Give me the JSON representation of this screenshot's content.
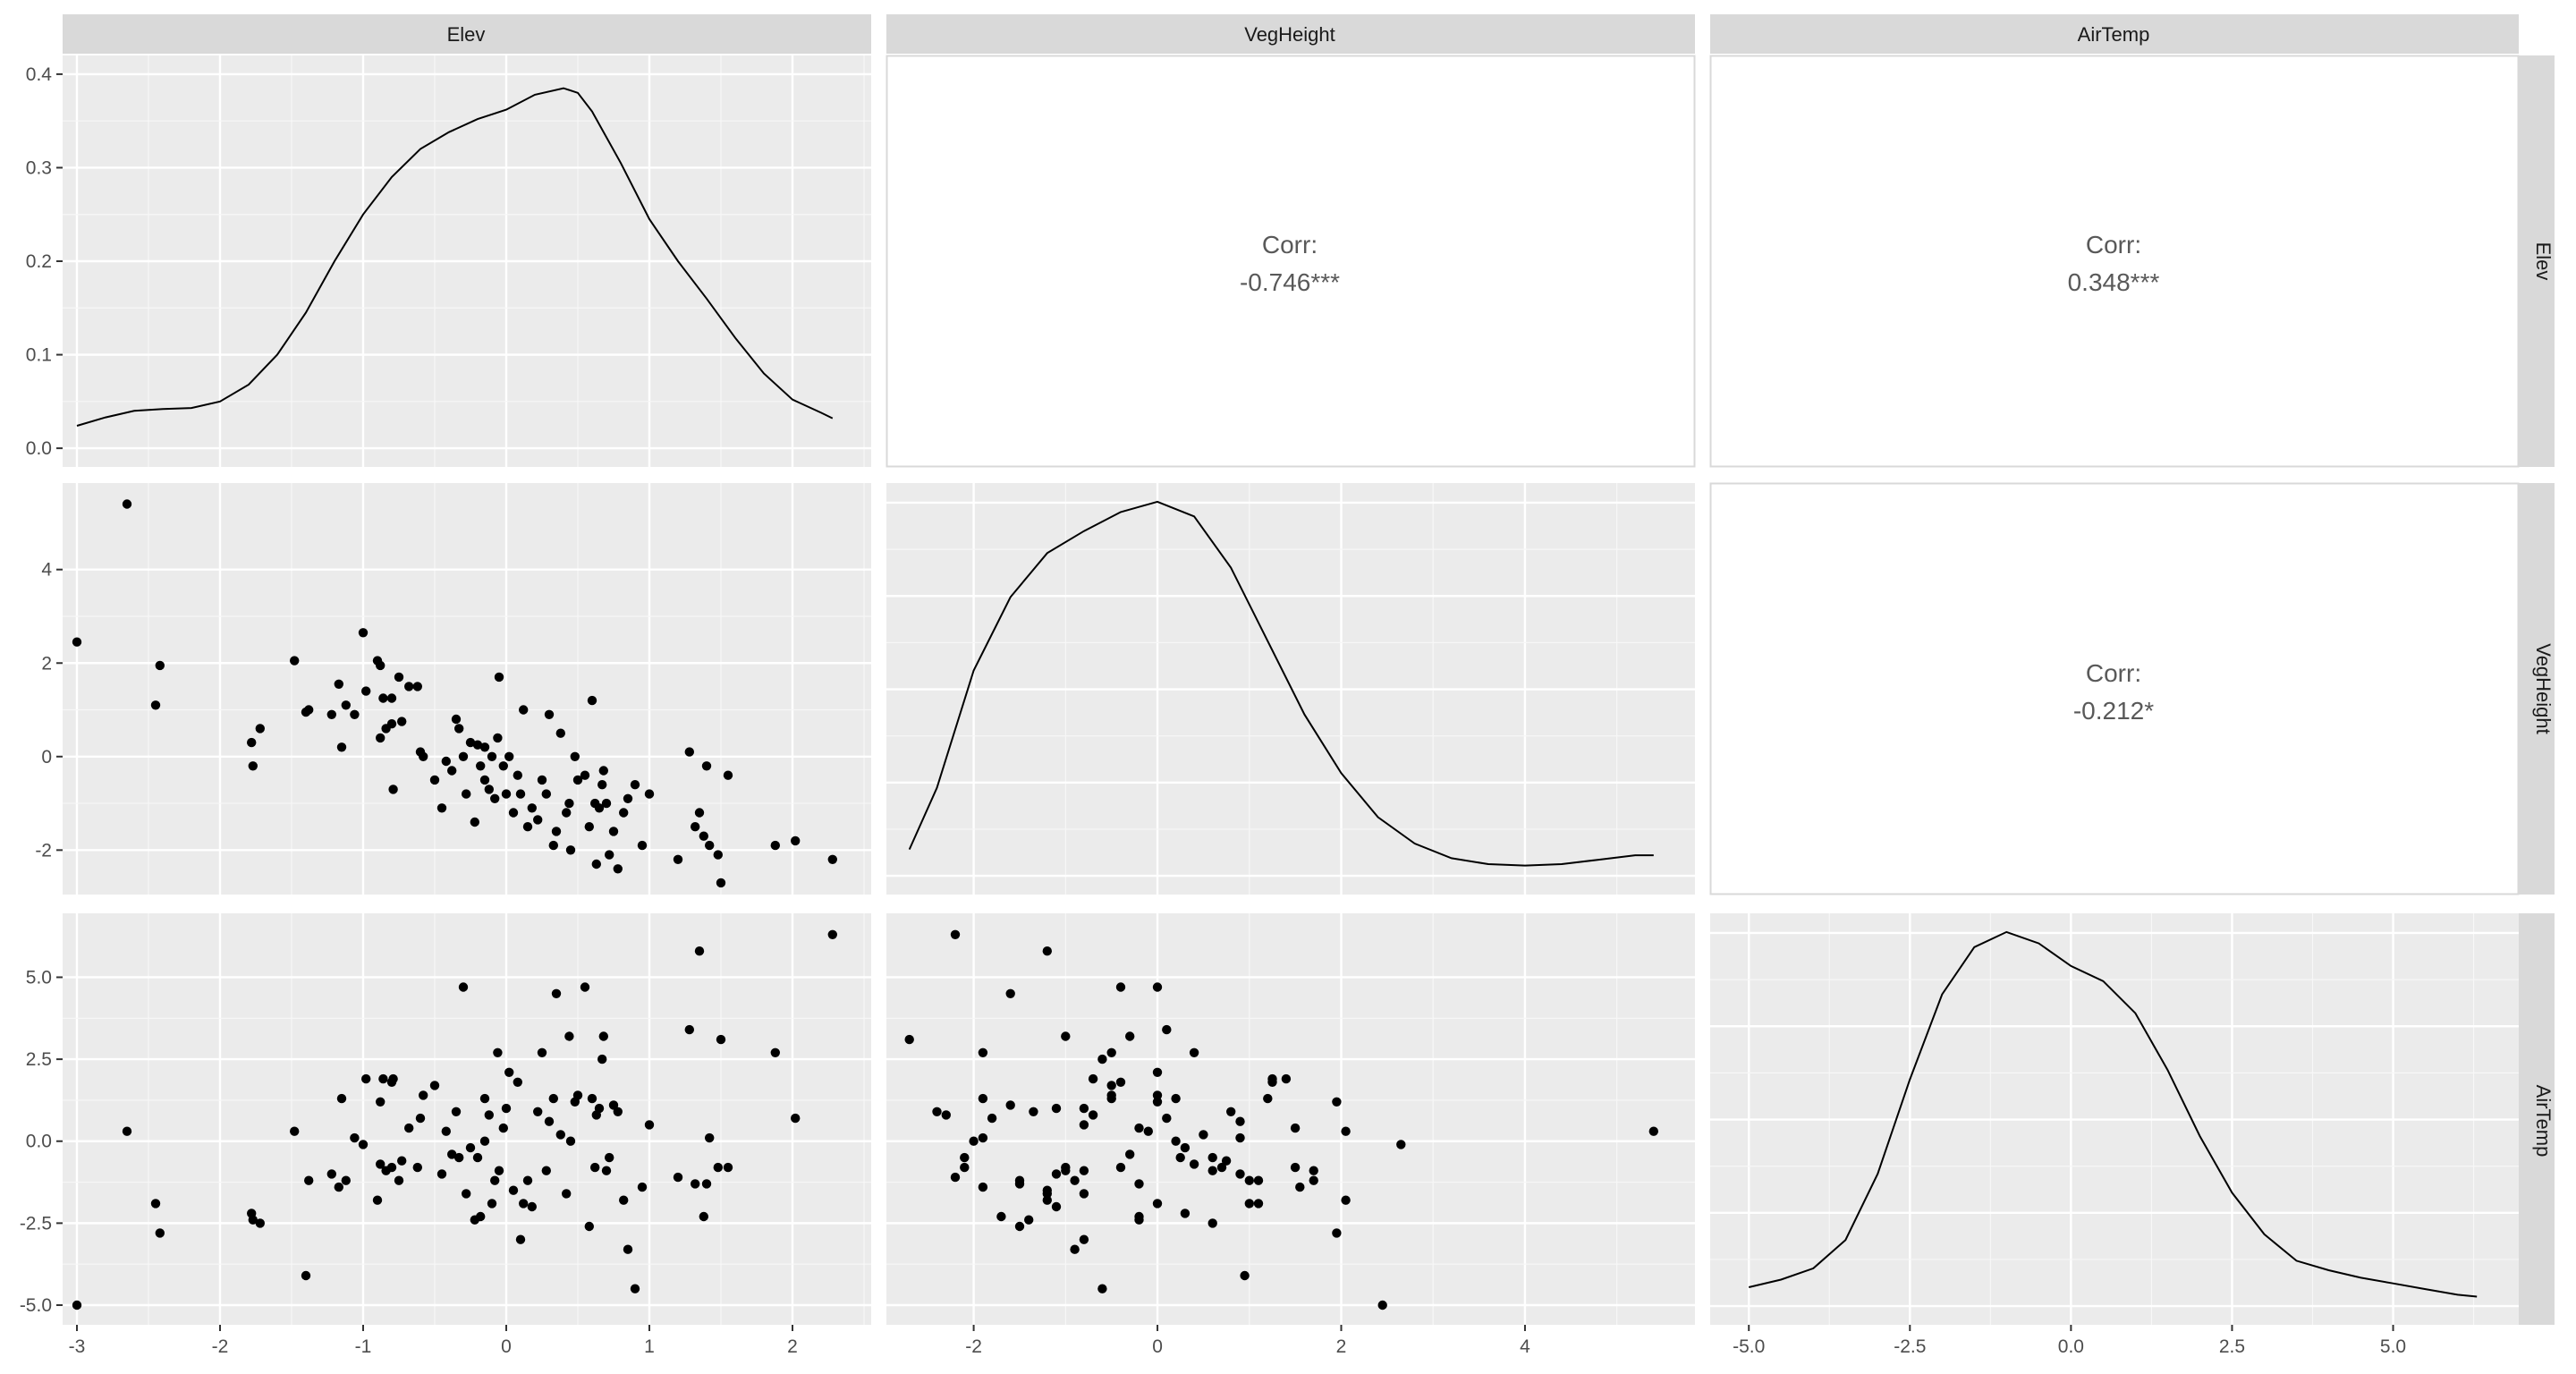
{
  "chart_data": {
    "type": "scatter",
    "variables": [
      "Elev",
      "VegHeight",
      "AirTemp"
    ],
    "strip_top": [
      "Elev",
      "VegHeight",
      "AirTemp"
    ],
    "strip_right": [
      "Elev",
      "VegHeight",
      "AirTemp"
    ],
    "x_axes": {
      "Elev": {
        "lim": [
          -3.1,
          2.55
        ],
        "ticks": [
          -3,
          -2,
          -1,
          0,
          1,
          2
        ],
        "tick_labels": [
          "-3",
          "-2",
          "-1",
          "0",
          "1",
          "2"
        ]
      },
      "VegHeight": {
        "lim": [
          -2.95,
          5.85
        ],
        "ticks": [
          -2,
          0,
          2,
          4
        ],
        "tick_labels": [
          "-2",
          "0",
          "2",
          "4"
        ]
      },
      "AirTemp": {
        "lim": [
          -5.6,
          6.95
        ],
        "ticks": [
          -5,
          -2.5,
          0,
          2.5,
          5
        ],
        "tick_labels": [
          "-5.0",
          "-2.5",
          "0.0",
          "2.5",
          "5.0"
        ]
      }
    },
    "y_axes": {
      "Elev": {
        "lim": [
          -0.02,
          0.42
        ],
        "ticks": [
          0.0,
          0.1,
          0.2,
          0.3,
          0.4
        ],
        "tick_labels": [
          "0.0",
          "0.1",
          "0.2",
          "0.3",
          "0.4"
        ]
      },
      "VegHeight": {
        "lim": [
          -2.95,
          5.85
        ],
        "ticks": [
          -2,
          0,
          2,
          4
        ],
        "tick_labels": [
          "-2",
          "0",
          "2",
          "4"
        ]
      },
      "AirTemp": {
        "lim": [
          -5.6,
          6.95
        ],
        "ticks": [
          -5,
          -2.5,
          0,
          2.5,
          5
        ],
        "tick_labels": [
          "-5.0",
          "-2.5",
          "0.0",
          "2.5",
          "5.0"
        ]
      }
    },
    "densities": [
      {
        "variable": "Elev",
        "x": [
          -3,
          -2.8,
          -2.6,
          -2.4,
          -2.2,
          -2.0,
          -1.8,
          -1.6,
          -1.4,
          -1.2,
          -1.0,
          -0.8,
          -0.6,
          -0.4,
          -0.2,
          0.0,
          0.2,
          0.4,
          0.5,
          0.6,
          0.8,
          1.0,
          1.2,
          1.4,
          1.6,
          1.8,
          2.0,
          2.2,
          2.28
        ],
        "y": [
          0.024,
          0.033,
          0.04,
          0.042,
          0.043,
          0.05,
          0.068,
          0.1,
          0.145,
          0.2,
          0.25,
          0.29,
          0.32,
          0.338,
          0.352,
          0.362,
          0.378,
          0.385,
          0.38,
          0.36,
          0.305,
          0.245,
          0.2,
          0.16,
          0.118,
          0.08,
          0.052,
          0.038,
          0.032
        ]
      },
      {
        "variable": "VegHeight",
        "x": [
          -2.7,
          -2.4,
          -2.0,
          -1.6,
          -1.2,
          -0.8,
          -0.4,
          0.0,
          0.4,
          0.8,
          1.2,
          1.6,
          2.0,
          2.4,
          2.8,
          3.2,
          3.6,
          4.0,
          4.4,
          4.8,
          5.2,
          5.4
        ],
        "y": [
          0.018,
          0.06,
          0.14,
          0.19,
          0.22,
          0.235,
          0.248,
          0.255,
          0.245,
          0.21,
          0.16,
          0.11,
          0.07,
          0.04,
          0.022,
          0.012,
          0.008,
          0.007,
          0.008,
          0.011,
          0.014,
          0.014
        ]
      },
      {
        "variable": "AirTemp",
        "x": [
          -5.0,
          -4.5,
          -4.0,
          -3.5,
          -3.0,
          -2.5,
          -2.0,
          -1.5,
          -1.0,
          -0.5,
          0.0,
          0.5,
          1.0,
          1.5,
          2.0,
          2.5,
          3.0,
          3.5,
          4.0,
          4.5,
          5.0,
          5.5,
          6.0,
          6.3
        ],
        "y": [
          0.01,
          0.014,
          0.02,
          0.035,
          0.07,
          0.12,
          0.165,
          0.19,
          0.198,
          0.192,
          0.18,
          0.172,
          0.155,
          0.125,
          0.09,
          0.06,
          0.038,
          0.024,
          0.019,
          0.015,
          0.012,
          0.009,
          0.006,
          0.005
        ]
      }
    ],
    "correlations": [
      {
        "row": "Elev",
        "col": "VegHeight",
        "label": "Corr:",
        "value": "-0.746***"
      },
      {
        "row": "Elev",
        "col": "AirTemp",
        "label": "Corr:",
        "value": "0.348***"
      },
      {
        "row": "VegHeight",
        "col": "AirTemp",
        "label": "Corr:",
        "value": "-0.212*"
      }
    ],
    "points": {
      "Elev": [
        -3.0,
        -2.65,
        -2.45,
        -2.42,
        -1.78,
        -1.77,
        -1.72,
        -1.48,
        -1.4,
        -1.38,
        -1.22,
        -1.17,
        -1.15,
        -1.12,
        -1.06,
        -1.0,
        -0.98,
        -0.9,
        -0.88,
        -0.88,
        -0.86,
        -0.84,
        -0.8,
        -0.8,
        -0.79,
        -0.75,
        -0.73,
        -0.68,
        -0.62,
        -0.6,
        -0.58,
        -0.5,
        -0.45,
        -0.42,
        -0.38,
        -0.35,
        -0.33,
        -0.3,
        -0.28,
        -0.25,
        -0.22,
        -0.2,
        -0.18,
        -0.15,
        -0.15,
        -0.12,
        -0.1,
        -0.08,
        -0.06,
        -0.05,
        -0.02,
        0.0,
        0.02,
        0.05,
        0.08,
        0.1,
        0.12,
        0.15,
        0.18,
        0.22,
        0.25,
        0.28,
        0.3,
        0.33,
        0.35,
        0.38,
        0.42,
        0.44,
        0.45,
        0.48,
        0.5,
        0.55,
        0.58,
        0.6,
        0.62,
        0.63,
        0.65,
        0.67,
        0.68,
        0.7,
        0.72,
        0.75,
        0.78,
        0.82,
        0.85,
        0.9,
        0.95,
        1.0,
        1.2,
        1.28,
        1.32,
        1.35,
        1.38,
        1.4,
        1.42,
        1.48,
        1.5,
        1.55,
        1.88,
        2.02,
        2.28
      ],
      "VegHeight": [
        2.45,
        5.4,
        1.1,
        1.95,
        0.3,
        -0.2,
        0.6,
        2.05,
        0.95,
        1.0,
        0.9,
        1.55,
        0.2,
        1.1,
        0.9,
        2.65,
        1.4,
        2.05,
        1.95,
        0.4,
        1.25,
        0.6,
        0.7,
        1.25,
        -0.7,
        1.7,
        0.75,
        1.5,
        1.5,
        0.1,
        0.0,
        -0.5,
        -1.1,
        -0.1,
        -0.3,
        0.8,
        0.6,
        0.0,
        -0.8,
        0.3,
        -1.4,
        0.25,
        -0.2,
        -0.5,
        0.2,
        -0.7,
        0.0,
        -0.9,
        0.4,
        1.7,
        -0.2,
        -0.8,
        0.0,
        -1.2,
        -0.4,
        -0.8,
        1.0,
        -1.5,
        -1.1,
        -1.35,
        -0.5,
        -0.8,
        0.9,
        -1.9,
        -1.6,
        0.5,
        -1.2,
        -1.0,
        -2.0,
        0.0,
        -0.5,
        -0.4,
        -1.5,
        1.2,
        -1.0,
        -2.3,
        -1.1,
        -0.6,
        -0.3,
        -1.0,
        -2.1,
        -1.6,
        -2.4,
        -1.2,
        -0.9,
        -0.6,
        -1.9,
        -0.8,
        -2.2,
        0.1,
        -1.5,
        -1.2,
        -1.7,
        -0.2,
        -1.9,
        -2.1,
        -2.7,
        -0.4,
        -1.9,
        -1.8,
        -2.2
      ],
      "AirTemp": [
        -5.0,
        0.3,
        -1.9,
        -2.8,
        -2.2,
        -2.4,
        -2.5,
        0.3,
        -4.1,
        -1.2,
        -1.0,
        -1.4,
        1.3,
        -1.2,
        0.1,
        -0.1,
        1.9,
        -1.8,
        1.2,
        -0.7,
        1.9,
        -0.9,
        -0.8,
        1.8,
        1.9,
        -1.2,
        -0.6,
        0.4,
        -0.8,
        0.7,
        1.4,
        1.7,
        -1.0,
        0.3,
        -0.4,
        0.9,
        -0.5,
        4.7,
        -1.6,
        -0.2,
        -2.4,
        -0.5,
        -2.3,
        1.3,
        0.0,
        0.8,
        -1.9,
        -1.2,
        2.7,
        -0.9,
        0.4,
        1.0,
        2.1,
        -1.5,
        1.8,
        -3.0,
        -1.9,
        -1.2,
        -2.0,
        0.9,
        2.7,
        -0.9,
        0.6,
        1.3,
        4.5,
        0.2,
        -1.6,
        3.2,
        0.0,
        1.2,
        1.4,
        4.7,
        -2.6,
        1.3,
        -0.8,
        0.8,
        1.0,
        2.5,
        3.2,
        -0.9,
        -0.5,
        1.1,
        0.9,
        -1.8,
        -3.3,
        -4.5,
        -1.4,
        0.5,
        -1.1,
        3.4,
        -1.3,
        5.8,
        -2.3,
        -1.3,
        0.1,
        -0.8,
        3.1,
        -0.8,
        2.7,
        0.7,
        6.3
      ]
    }
  }
}
